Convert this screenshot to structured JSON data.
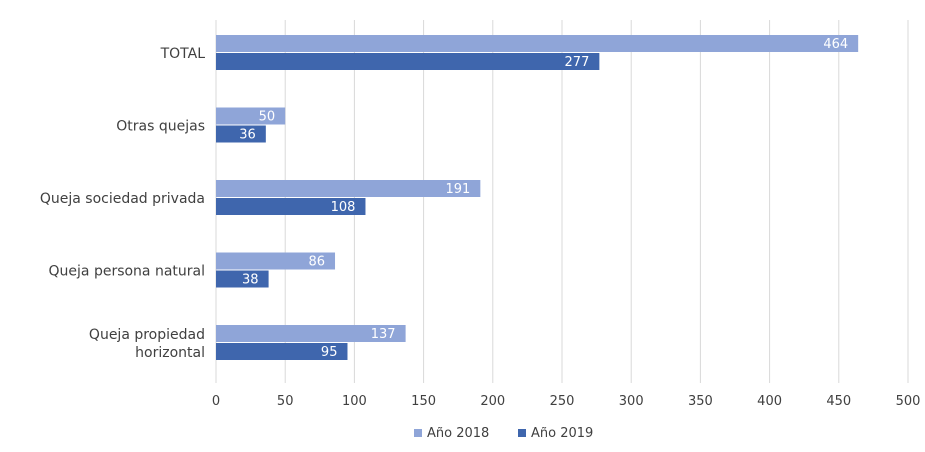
{
  "chart_data": {
    "type": "bar",
    "orientation": "horizontal",
    "categories": [
      "TOTAL",
      "Otras quejas",
      "Queja sociedad privada",
      "Queja persona natural",
      "Queja propiedad horizontal"
    ],
    "series": [
      {
        "name": "Año 2018",
        "values": [
          464,
          50,
          191,
          86,
          137
        ],
        "color": "#8fa5d8"
      },
      {
        "name": "Año 2019",
        "values": [
          277,
          36,
          108,
          38,
          95
        ],
        "color": "#3f66ad"
      }
    ],
    "xlim": [
      0,
      500
    ],
    "xticks": [
      0,
      50,
      100,
      150,
      200,
      250,
      300,
      350,
      400,
      450,
      500
    ],
    "grid": true,
    "legend": "bottom",
    "data_labels": true
  }
}
